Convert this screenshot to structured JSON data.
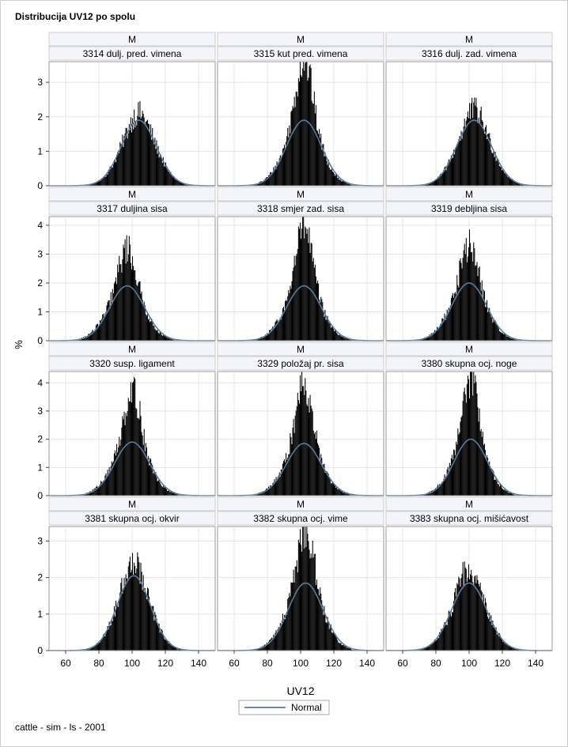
{
  "title": "Distribucija UV12 po spolu",
  "footnote": "cattle - sim - ls - 2001",
  "chart_data": {
    "type": "bar",
    "subtype": "histogram-panel-grid",
    "xlabel": "UV12",
    "ylabel": "%",
    "xlim": [
      50,
      150
    ],
    "xticks": [
      60,
      80,
      100,
      120,
      140
    ],
    "legend": {
      "position": "bottom-center",
      "entries": [
        "Normal"
      ]
    },
    "colors": {
      "bars": "#000000",
      "normal_curve": "#5a7a9a",
      "header_bg": "#f3f5fb",
      "grid": "#e5e5e5"
    },
    "grid": true,
    "bin_width": 0.5,
    "row_ylims": [
      [
        0,
        3.6
      ],
      [
        0,
        4.3
      ],
      [
        0,
        4.4
      ],
      [
        0,
        3.4
      ]
    ],
    "row_yticks": [
      [
        0,
        1,
        2,
        3
      ],
      [
        0,
        1,
        2,
        3,
        4
      ],
      [
        0,
        1,
        2,
        3,
        4
      ],
      [
        0,
        1,
        2,
        3
      ]
    ],
    "panels": [
      {
        "sex": "M",
        "trait": "3314 dulj. pred. vimena",
        "mean": 104,
        "sd": 10.5,
        "peak": 2.1,
        "curve_peak": 1.9,
        "skew": 0.0
      },
      {
        "sex": "M",
        "trait": "3315 kut pred. vimena",
        "mean": 102,
        "sd": 10.5,
        "peak": 3.7,
        "curve_peak": 1.9,
        "skew": 0.3
      },
      {
        "sex": "M",
        "trait": "3316 dulj. zad. vimena",
        "mean": 103,
        "sd": 10.5,
        "peak": 2.2,
        "curve_peak": 1.9,
        "skew": 0.0
      },
      {
        "sex": "M",
        "trait": "3317 duljina sisa",
        "mean": 97,
        "sd": 10.5,
        "peak": 3.2,
        "curve_peak": 1.9,
        "skew": 0.4
      },
      {
        "sex": "M",
        "trait": "3318 smjer zad. sisa",
        "mean": 102,
        "sd": 10.5,
        "peak": 4.0,
        "curve_peak": 1.9,
        "skew": 0.3
      },
      {
        "sex": "M",
        "trait": "3319 debljina sisa",
        "mean": 100,
        "sd": 10.5,
        "peak": 3.3,
        "curve_peak": 2.0,
        "skew": 0.3
      },
      {
        "sex": "M",
        "trait": "3320 susp. ligament",
        "mean": 100,
        "sd": 10.5,
        "peak": 3.8,
        "curve_peak": 1.9,
        "skew": 0.4
      },
      {
        "sex": "M",
        "trait": "3329 položaj pr. sisa",
        "mean": 102,
        "sd": 10.5,
        "peak": 4.1,
        "curve_peak": 1.85,
        "skew": 0.3
      },
      {
        "sex": "M",
        "trait": "3380 skupna ocj. noge",
        "mean": 101,
        "sd": 10.0,
        "peak": 4.2,
        "curve_peak": 2.0,
        "skew": 0.4
      },
      {
        "sex": "M",
        "trait": "3381 skupna ocj. okvir",
        "mean": 101,
        "sd": 10.0,
        "peak": 2.5,
        "curve_peak": 2.05,
        "skew": 0.0
      },
      {
        "sex": "M",
        "trait": "3382 skupna ocj. vime",
        "mean": 103,
        "sd": 10.5,
        "peak": 3.3,
        "curve_peak": 1.85,
        "skew": 0.3
      },
      {
        "sex": "M",
        "trait": "3383 skupna ocj. mišićavost",
        "mean": 100,
        "sd": 10.5,
        "peak": 2.3,
        "curve_peak": 1.85,
        "skew": 0.0
      }
    ]
  }
}
